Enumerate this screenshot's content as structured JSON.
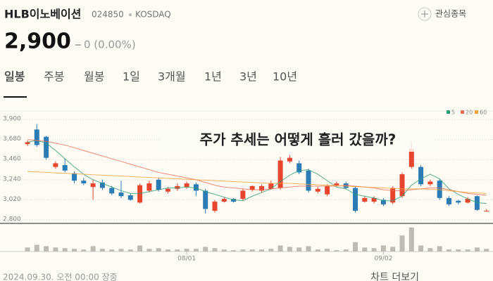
{
  "header": {
    "name": "HLB이노베이션",
    "code": "024850",
    "market": "KOSDAQ",
    "watch": "관심종목",
    "price": "2,900",
    "change": "0 (0.00%)"
  },
  "tabs": [
    "일봉",
    "주봉",
    "월봉",
    "1일",
    "3개월",
    "1년",
    "3년",
    "10년"
  ],
  "footer": {
    "timestamp": "2024.09.30. 오전 00:00 장중",
    "more": "차트 더보기"
  },
  "chart_data": {
    "type": "candlestick",
    "title": "주가 추세는 어떻게 흘러 갔을까?",
    "categories": [
      null,
      null,
      null,
      null,
      null,
      null,
      null,
      null,
      null,
      null,
      null,
      null,
      null,
      null,
      null,
      null,
      null,
      "08/01",
      null,
      null,
      null,
      null,
      null,
      null,
      null,
      null,
      null,
      null,
      null,
      null,
      null,
      null,
      null,
      null,
      null,
      null,
      null,
      null,
      "09/02",
      null,
      null,
      null,
      null,
      null,
      null,
      null,
      null,
      null,
      null,
      null
    ],
    "open": [
      3630,
      3790,
      3710,
      3380,
      3400,
      3310,
      3230,
      3160,
      3210,
      3150,
      3100,
      3070,
      2990,
      3120,
      3240,
      3110,
      3140,
      3160,
      3190,
      3120,
      2900,
      3000,
      3030,
      3030,
      3130,
      3120,
      3140,
      3150,
      3440,
      3420,
      3340,
      3110,
      3080,
      3180,
      3200,
      3150,
      3000,
      3000,
      3020,
      2990,
      3060,
      3380,
      3380,
      3190,
      3230,
      3040,
      3010,
      2990,
      3060,
      2900
    ],
    "high": [
      3670,
      3850,
      3720,
      3440,
      3470,
      3330,
      3260,
      3240,
      3240,
      3170,
      3230,
      3090,
      3200,
      3230,
      3260,
      3160,
      3200,
      3220,
      3210,
      3140,
      3020,
      3050,
      3040,
      3140,
      3180,
      3190,
      3230,
      3490,
      3510,
      3450,
      3360,
      3160,
      3190,
      3220,
      3220,
      3170,
      3060,
      3060,
      3040,
      3170,
      3320,
      3660,
      3400,
      3240,
      3250,
      3060,
      3020,
      3050,
      3070,
      2920
    ],
    "low": [
      3610,
      3600,
      3460,
      3360,
      3320,
      3200,
      3180,
      3020,
      3130,
      3070,
      3040,
      3010,
      2980,
      3100,
      3110,
      3090,
      3120,
      3140,
      3060,
      2870,
      2880,
      2990,
      2990,
      3010,
      3110,
      3100,
      3130,
      3130,
      3420,
      3300,
      3100,
      3090,
      3060,
      3170,
      3140,
      2880,
      2990,
      2980,
      2950,
      2970,
      3040,
      3360,
      3170,
      3170,
      3020,
      2950,
      2970,
      2980,
      2900,
      2890
    ],
    "close": [
      3650,
      3620,
      3480,
      3420,
      3340,
      3230,
      3200,
      3200,
      3150,
      3090,
      3060,
      3020,
      3180,
      3200,
      3130,
      3140,
      3170,
      3200,
      3120,
      2920,
      3000,
      3030,
      3000,
      3120,
      3170,
      3170,
      3200,
      3450,
      3480,
      3320,
      3120,
      3140,
      3170,
      3200,
      3150,
      2900,
      3040,
      3040,
      2970,
      3150,
      3300,
      3580,
      3190,
      3220,
      3040,
      2970,
      2990,
      3030,
      2910,
      2900
    ],
    "volume": [
      6,
      10,
      8,
      6,
      5,
      4,
      3,
      8,
      4,
      3,
      4,
      3,
      9,
      4,
      5,
      3,
      3,
      4,
      4,
      7,
      5,
      3,
      2,
      3,
      3,
      3,
      4,
      9,
      7,
      6,
      8,
      3,
      4,
      2,
      3,
      14,
      6,
      5,
      9,
      7,
      24,
      36,
      9,
      5,
      8,
      3,
      3,
      3,
      6,
      4
    ],
    "vlim": [
      0,
      40
    ],
    "up_color": "#e8452f",
    "down_color": "#2b7cb5",
    "series": [
      {
        "name": "5",
        "color": "#2a9d77",
        "values": [
          3650,
          3670,
          3640,
          3560,
          3470,
          3380,
          3300,
          3240,
          3200,
          3160,
          3120,
          3090,
          3090,
          3110,
          3130,
          3150,
          3150,
          3160,
          3150,
          3110,
          3080,
          3050,
          3020,
          3010,
          3060,
          3100,
          3140,
          3220,
          3290,
          3340,
          3350,
          3300,
          3230,
          3160,
          3140,
          3080,
          3060,
          3040,
          3010,
          3010,
          3060,
          3180,
          3250,
          3300,
          3250,
          3140,
          3080,
          3030,
          2990,
          2980
        ]
      },
      {
        "name": "20",
        "color": "#ef6b5a",
        "values": [
          3680,
          3670,
          3660,
          3640,
          3620,
          3590,
          3560,
          3530,
          3500,
          3470,
          3440,
          3410,
          3380,
          3350,
          3320,
          3300,
          3280,
          3260,
          3240,
          3210,
          3180,
          3160,
          3150,
          3140,
          3130,
          3130,
          3140,
          3150,
          3160,
          3170,
          3170,
          3170,
          3170,
          3170,
          3180,
          3170,
          3160,
          3150,
          3130,
          3120,
          3120,
          3130,
          3140,
          3150,
          3150,
          3130,
          3110,
          3090,
          3080,
          3070
        ]
      },
      {
        "name": "60",
        "color": "#f2a13a",
        "values": [
          3330,
          3325,
          3320,
          3315,
          3310,
          3305,
          3300,
          3295,
          3290,
          3285,
          3280,
          3275,
          3270,
          3265,
          3260,
          3255,
          3250,
          3245,
          3240,
          3235,
          3230,
          3225,
          3220,
          3215,
          3210,
          3205,
          3200,
          3200,
          3200,
          3195,
          3190,
          3185,
          3180,
          3175,
          3170,
          3165,
          3160,
          3155,
          3150,
          3145,
          3140,
          3140,
          3140,
          3135,
          3130,
          3120,
          3110,
          3100,
          3095,
          3090
        ]
      }
    ],
    "ylim": [
      2762,
      3977
    ],
    "yticks": [
      {
        "value": 3900,
        "label": "3,900"
      },
      {
        "value": 3680,
        "label": "3,680"
      },
      {
        "value": 3460,
        "label": "3,460"
      },
      {
        "value": 3240,
        "label": "3,240"
      },
      {
        "value": 3020,
        "label": "3,020"
      },
      {
        "value": 2800,
        "label": "2,800"
      }
    ],
    "grid": true
  }
}
